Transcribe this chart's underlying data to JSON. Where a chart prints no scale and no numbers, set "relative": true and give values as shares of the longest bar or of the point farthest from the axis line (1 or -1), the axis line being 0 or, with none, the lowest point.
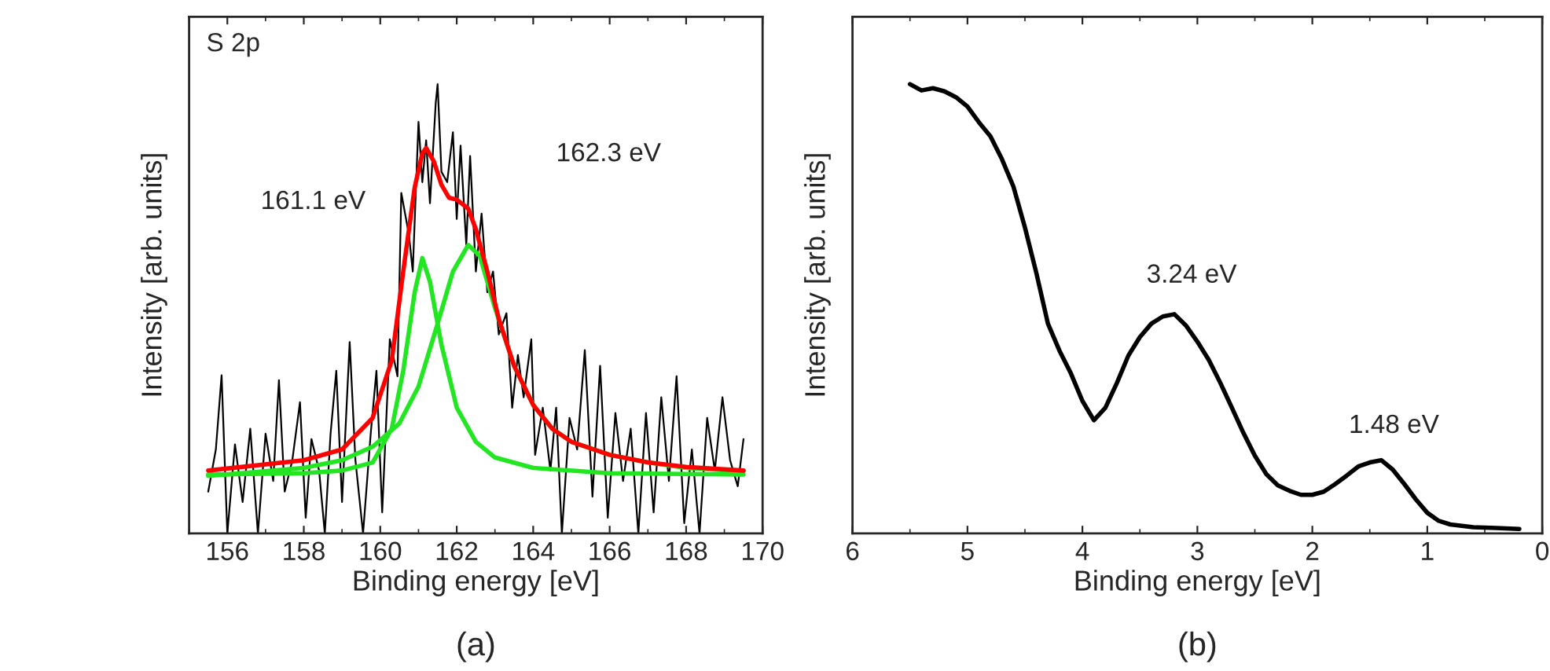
{
  "chart_data": [
    {
      "type": "line",
      "relative": true,
      "xlabel": "Binding energy [eV]",
      "ylabel": "Intensity [arb. units]",
      "xlim": [
        155,
        170
      ],
      "xticks": [
        156,
        158,
        160,
        162,
        164,
        166,
        168,
        170
      ],
      "tick_labels": "x",
      "grid": false,
      "legend": false,
      "annotations": [
        "S 2p",
        {
          "text": "161.1 eV",
          "x": 161.1,
          "y": 0.613
        },
        "162.3 eV",
        "(a)"
      ],
      "series": [
        {
          "color": "#000000",
          "x": [
            155.5,
            155.7,
            155.85,
            156.0,
            156.2,
            156.4,
            156.6,
            156.8,
            157.0,
            157.2,
            157.35,
            157.5,
            157.7,
            157.9,
            158.05,
            158.2,
            158.4,
            158.55,
            158.7,
            158.85,
            159.0,
            159.2,
            159.35,
            159.55,
            159.75,
            159.9,
            160.05,
            160.25,
            160.45,
            160.55,
            160.75,
            160.85,
            161.0,
            161.1,
            161.2,
            161.3,
            161.45,
            161.5,
            161.6,
            161.75,
            161.9,
            162.0,
            162.1,
            162.25,
            162.35,
            162.5,
            162.65,
            162.8,
            162.95,
            163.1,
            163.3,
            163.45,
            163.6,
            163.75,
            163.95,
            164.05,
            164.25,
            164.45,
            164.6,
            164.75,
            164.95,
            165.15,
            165.35,
            165.55,
            165.75,
            165.95,
            166.15,
            166.35,
            166.55,
            166.75,
            166.95,
            167.15,
            167.35,
            167.55,
            167.75,
            167.95,
            168.15,
            168.35,
            168.55,
            168.75,
            168.95,
            169.15,
            169.35,
            169.5
          ],
          "values": [
            0.093,
            0.187,
            0.352,
            0,
            0.198,
            0.07,
            0.233,
            0,
            0.222,
            0.117,
            0.341,
            0.093,
            0.163,
            0.292,
            0.035,
            0.21,
            0.14,
            0,
            0.222,
            0.362,
            0.07,
            0.426,
            0.163,
            0,
            0.222,
            0.362,
            0.047,
            0.432,
            0.35,
            0.758,
            0.665,
            0.583,
            0.916,
            0.782,
            0.875,
            0.735,
            0.957,
            1.0,
            0.805,
            0.782,
            0.893,
            0.7,
            0.863,
            0.642,
            0.84,
            0.583,
            0.712,
            0.537,
            0.583,
            0.443,
            0.49,
            0.28,
            0.397,
            0.303,
            0.432,
            0.175,
            0.28,
            0.14,
            0.28,
            0,
            0.257,
            0.187,
            0.408,
            0.082,
            0.373,
            0.035,
            0.268,
            0.117,
            0.233,
            0,
            0.268,
            0.047,
            0.303,
            0.117,
            0.35,
            0.023,
            0.187,
            0,
            0.257,
            0.14,
            0.303,
            0.163,
            0.105,
            0.21
          ]
        },
        {
          "color": "#22e622",
          "x": [
            155.5,
            158,
            159,
            159.8,
            160.3,
            160.6,
            160.9,
            161.1,
            161.3,
            161.6,
            162.0,
            162.5,
            163,
            164,
            166,
            169.5
          ],
          "values": [
            0.131,
            0.134,
            0.14,
            0.158,
            0.233,
            0.362,
            0.537,
            0.613,
            0.56,
            0.42,
            0.28,
            0.204,
            0.169,
            0.146,
            0.134,
            0.131
          ]
        },
        {
          "color": "#22e622",
          "x": [
            155.5,
            158,
            159,
            159.8,
            160.5,
            161,
            161.5,
            161.9,
            162.3,
            162.6,
            163,
            163.5,
            164,
            164.5,
            165,
            166,
            167,
            168,
            169.5
          ],
          "values": [
            0.128,
            0.146,
            0.163,
            0.193,
            0.245,
            0.327,
            0.467,
            0.583,
            0.642,
            0.618,
            0.502,
            0.373,
            0.286,
            0.233,
            0.204,
            0.175,
            0.158,
            0.146,
            0.138
          ]
        },
        {
          "color": "#ff0000",
          "x": [
            155.5,
            158,
            159,
            159.8,
            160.3,
            160.6,
            160.9,
            161.1,
            161.2,
            161.4,
            161.6,
            161.8,
            162.0,
            162.3,
            162.5,
            162.8,
            163.1,
            163.5,
            164,
            164.5,
            165,
            166,
            167,
            168,
            169.5
          ],
          "values": [
            0.14,
            0.163,
            0.187,
            0.257,
            0.385,
            0.583,
            0.77,
            0.846,
            0.858,
            0.828,
            0.776,
            0.747,
            0.743,
            0.723,
            0.677,
            0.583,
            0.478,
            0.373,
            0.286,
            0.233,
            0.204,
            0.175,
            0.158,
            0.148,
            0.14
          ]
        }
      ]
    },
    {
      "type": "line",
      "relative": true,
      "xlabel": "Binding energy [eV]",
      "ylabel": "Intensity [arb. units]",
      "xlim": [
        6,
        0
      ],
      "xticks": [
        6,
        5,
        4,
        3,
        2,
        1,
        0
      ],
      "tick_labels": "x",
      "grid": false,
      "legend": false,
      "annotations": [
        {
          "text": "3.24 eV",
          "x": 3.24,
          "y": 0.488
        },
        {
          "text": "1.48 eV",
          "x": 1.48,
          "y": 0.163
        },
        "(b)"
      ],
      "series": [
        {
          "color": "#000000",
          "x": [
            5.5,
            5.4,
            5.3,
            5.2,
            5.1,
            5.0,
            4.9,
            4.8,
            4.7,
            4.6,
            4.5,
            4.4,
            4.3,
            4.2,
            4.1,
            4.0,
            3.9,
            3.8,
            3.7,
            3.6,
            3.5,
            3.4,
            3.3,
            3.2,
            3.1,
            3.0,
            2.9,
            2.8,
            2.7,
            2.6,
            2.5,
            2.4,
            2.3,
            2.2,
            2.1,
            2.0,
            1.9,
            1.8,
            1.7,
            1.6,
            1.5,
            1.4,
            1.3,
            1.2,
            1.1,
            1.0,
            0.9,
            0.8,
            0.6,
            0.4,
            0.2
          ],
          "values": [
            1.0,
            0.986,
            0.991,
            0.984,
            0.971,
            0.95,
            0.915,
            0.884,
            0.833,
            0.772,
            0.681,
            0.579,
            0.467,
            0.407,
            0.356,
            0.295,
            0.252,
            0.28,
            0.335,
            0.396,
            0.437,
            0.467,
            0.483,
            0.488,
            0.463,
            0.427,
            0.386,
            0.335,
            0.28,
            0.224,
            0.173,
            0.132,
            0.107,
            0.095,
            0.086,
            0.086,
            0.093,
            0.11,
            0.129,
            0.149,
            0.158,
            0.163,
            0.142,
            0.11,
            0.076,
            0.046,
            0.028,
            0.02,
            0.014,
            0.012,
            0.01
          ]
        }
      ]
    }
  ]
}
